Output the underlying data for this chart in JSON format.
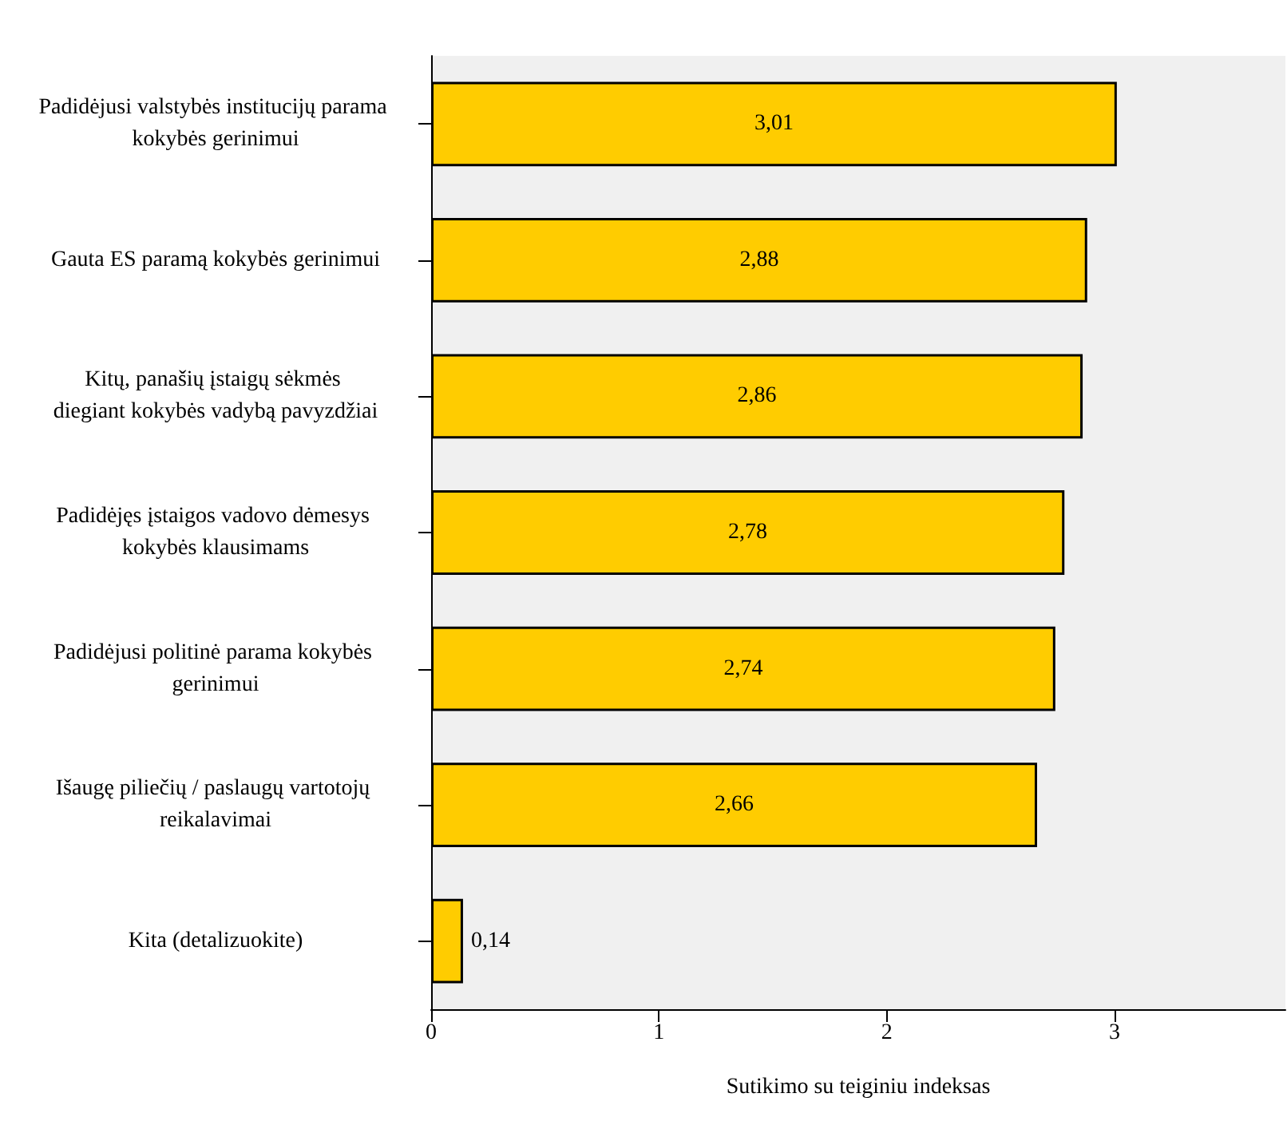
{
  "chart_data": {
    "type": "bar",
    "orientation": "horizontal",
    "xlabel": "Sutikimo su teiginiu indeksas",
    "categories": [
      "Padidėjusi valstybės institucijų parama kokybės gerinimui",
      "Gauta ES paramą kokybės gerinimui",
      "Kitų, panašių įstaigų sėkmės diegiant kokybės vadybą pavyzdžiai",
      "Padidėjęs įstaigos vadovo dėmesys kokybės klausimams",
      "Padidėjusi politinė parama kokybės gerinimui",
      "Išaugę piliečių / paslaugų vartotojų reikalavimai",
      "Kita (detalizuokite)"
    ],
    "values": [
      3.01,
      2.88,
      2.86,
      2.78,
      2.74,
      2.66,
      0.14
    ],
    "value_labels": [
      "3,01",
      "2,88",
      "2,86",
      "2,78",
      "2,74",
      "2,66",
      "0,14"
    ],
    "color": "#ffcc00",
    "xlim": [
      0,
      3.75
    ],
    "xticks": [
      0,
      1,
      2,
      3
    ]
  }
}
